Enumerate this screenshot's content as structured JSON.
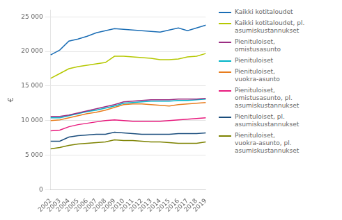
{
  "chart_data": {
    "type": "line",
    "ylabel": "€",
    "categories": [
      "2002",
      "2003",
      "2004",
      "2005",
      "2006",
      "2007",
      "2008",
      "2009",
      "2010",
      "2011",
      "2012",
      "2013",
      "2014",
      "2015",
      "2016",
      "2017",
      "2018",
      "2019"
    ],
    "series": [
      {
        "name": "Kaikki kotitaloudet",
        "color": "#1a6db5",
        "values": [
          19500,
          20200,
          21500,
          21800,
          22200,
          22700,
          23000,
          23300,
          23200,
          23100,
          23000,
          22900,
          22800,
          23100,
          23400,
          23000,
          23400,
          23800
        ]
      },
      {
        "name": "Kaikki kotitaloudet, pl.\nasumiskustannukset",
        "color": "#b5c800",
        "values": [
          16100,
          16800,
          17500,
          17800,
          18000,
          18200,
          18400,
          19300,
          19300,
          19200,
          19100,
          19000,
          18800,
          18800,
          18900,
          19200,
          19300,
          19700
        ]
      },
      {
        "name": "Pienituloiset,\nomistusasunto",
        "color": "#9b2d82",
        "values": [
          10600,
          10600,
          10800,
          11100,
          11400,
          11700,
          12000,
          12300,
          12700,
          12800,
          12900,
          13000,
          13000,
          13000,
          13100,
          13100,
          13100,
          13200
        ]
      },
      {
        "name": "Pienituloiset",
        "color": "#00b4c8",
        "values": [
          10400,
          10400,
          10700,
          11000,
          11300,
          11500,
          11800,
          12100,
          12500,
          12600,
          12700,
          12800,
          12800,
          12800,
          12900,
          12900,
          13000,
          13100
        ]
      },
      {
        "name": "Pienituloiset,\nvuokra-asunto",
        "color": "#e87d1e",
        "values": [
          10000,
          10100,
          10400,
          10700,
          11000,
          11200,
          11500,
          11900,
          12300,
          12400,
          12400,
          12300,
          12200,
          12100,
          12300,
          12400,
          12500,
          12600
        ]
      },
      {
        "name": "Pienituloiset,\nomistusasunto, pl.\nasumiskustannukset",
        "color": "#e8197d",
        "values": [
          8500,
          8600,
          9100,
          9400,
          9600,
          9800,
          10000,
          10100,
          10000,
          9900,
          9900,
          9900,
          9900,
          10000,
          10100,
          10200,
          10300,
          10400
        ]
      },
      {
        "name": "Pienituloiset, pl.\nasumiskustannukset",
        "color": "#1a4d7c",
        "values": [
          7000,
          7000,
          7600,
          7800,
          7900,
          8000,
          8000,
          8300,
          8200,
          8100,
          8000,
          8000,
          8000,
          8000,
          8100,
          8100,
          8100,
          8200
        ]
      },
      {
        "name": "Pienituloiset,\nvuokra-asunto, pl.\nasumiskustannukset",
        "color": "#7d8200",
        "values": [
          5900,
          6100,
          6400,
          6600,
          6700,
          6800,
          6900,
          7200,
          7100,
          7100,
          7000,
          6900,
          6900,
          6800,
          6700,
          6700,
          6700,
          6900
        ]
      }
    ],
    "ylim": [
      0,
      26000
    ],
    "yticks": [
      0,
      {
        "value": 5000,
        "label": "5 000"
      },
      {
        "value": 10000,
        "label": "10 000"
      },
      {
        "value": 15000,
        "label": "15 000"
      },
      {
        "value": 20000,
        "label": "20 000"
      },
      {
        "value": 25000,
        "label": "25 000"
      }
    ],
    "grid": true,
    "legend": "right"
  }
}
